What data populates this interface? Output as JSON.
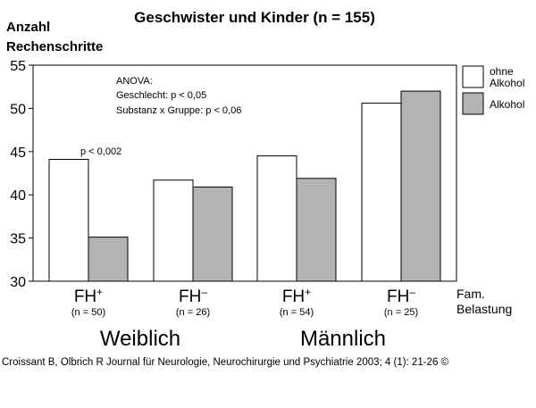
{
  "chart_data": {
    "type": "bar",
    "title": "Geschwister und Kinder (n = 155)",
    "ylabel": [
      "Anzahl",
      "Rechenschritte"
    ],
    "ylim": [
      30,
      55
    ],
    "yticks": [
      30,
      35,
      40,
      45,
      50,
      55
    ],
    "xlabel": [
      "Fam.",
      "Belastung"
    ],
    "categories": [
      {
        "label": "FH",
        "sup": "+",
        "n": "(n = 50)"
      },
      {
        "label": "FH",
        "sup": "–",
        "n": "(n = 26)"
      },
      {
        "label": "FH",
        "sup": "+",
        "n": "(n = 54)"
      },
      {
        "label": "FH",
        "sup": "–",
        "n": "(n = 25)"
      }
    ],
    "groups": [
      "Weiblich",
      "Männlich"
    ],
    "series": [
      {
        "name": "ohne Alkohol",
        "legend_lines": [
          "ohne",
          "Alkohol"
        ],
        "color": "#ffffff",
        "values": [
          44.1,
          41.7,
          44.5,
          50.6
        ]
      },
      {
        "name": "Alkohol",
        "legend_lines": [
          "Alkohol"
        ],
        "color": "#b3b3b3",
        "values": [
          35.1,
          40.9,
          41.9,
          52.0
        ]
      }
    ],
    "annotations": {
      "anova": [
        "ANOVA:",
        "Geschlecht: p < 0,05",
        "Substanz x Gruppe: p < 0,06"
      ],
      "pvalue": "p < 0,002"
    },
    "grid": false,
    "legend_position": "right"
  },
  "footer": {
    "credit": "Croissant B, Olbrich R Journal für Neurologie, Neurochirurgie und Psychiatrie 2003; 4 (1): 21-26 ©"
  }
}
